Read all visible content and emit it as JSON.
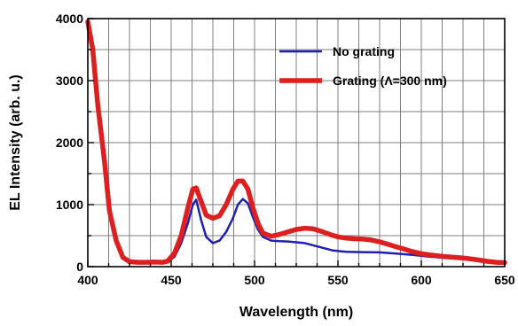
{
  "chart_data": {
    "type": "line",
    "title": "",
    "xlabel": "Wavelength (nm)",
    "ylabel": "EL Intensity (arb. u.)",
    "xlim": [
      400,
      650
    ],
    "ylim": [
      0,
      4000
    ],
    "x_ticks": [
      400,
      450,
      500,
      550,
      600,
      650
    ],
    "y_ticks": [
      0,
      1000,
      2000,
      3000,
      4000
    ],
    "x_tick_labels": [
      "400",
      "450",
      "500",
      "550",
      "600",
      "650"
    ],
    "y_tick_labels": [
      "0",
      "1000",
      "2000",
      "3000",
      "4000"
    ],
    "grid": true,
    "legend_position": "top-right",
    "series": [
      {
        "name": "No grating",
        "color": "#1f1fb4",
        "points": [
          [
            400,
            3950
          ],
          [
            403,
            3500
          ],
          [
            406,
            2600
          ],
          [
            410,
            1700
          ],
          [
            413,
            900
          ],
          [
            417,
            420
          ],
          [
            421,
            150
          ],
          [
            425,
            80
          ],
          [
            430,
            65
          ],
          [
            435,
            65
          ],
          [
            440,
            70
          ],
          [
            445,
            60
          ],
          [
            448,
            75
          ],
          [
            452,
            160
          ],
          [
            456,
            380
          ],
          [
            460,
            700
          ],
          [
            463,
            1000
          ],
          [
            465,
            1080
          ],
          [
            468,
            750
          ],
          [
            471,
            480
          ],
          [
            475,
            380
          ],
          [
            479,
            420
          ],
          [
            483,
            560
          ],
          [
            487,
            780
          ],
          [
            490,
            1000
          ],
          [
            493,
            1090
          ],
          [
            496,
            1020
          ],
          [
            499,
            800
          ],
          [
            502,
            600
          ],
          [
            505,
            480
          ],
          [
            510,
            420
          ],
          [
            515,
            410
          ],
          [
            520,
            405
          ],
          [
            530,
            380
          ],
          [
            540,
            310
          ],
          [
            547,
            260
          ],
          [
            555,
            240
          ],
          [
            565,
            235
          ],
          [
            575,
            230
          ],
          [
            585,
            210
          ],
          [
            595,
            190
          ],
          [
            605,
            160
          ],
          [
            615,
            140
          ],
          [
            625,
            120
          ],
          [
            635,
            90
          ],
          [
            645,
            70
          ],
          [
            650,
            60
          ]
        ]
      },
      {
        "name": "Grating (Λ=300 nm)",
        "color": "#dd1f1f",
        "points": [
          [
            400,
            3950
          ],
          [
            403,
            3500
          ],
          [
            406,
            2600
          ],
          [
            410,
            1700
          ],
          [
            413,
            900
          ],
          [
            417,
            420
          ],
          [
            421,
            150
          ],
          [
            425,
            80
          ],
          [
            430,
            70
          ],
          [
            435,
            70
          ],
          [
            440,
            75
          ],
          [
            445,
            70
          ],
          [
            448,
            90
          ],
          [
            452,
            220
          ],
          [
            456,
            500
          ],
          [
            460,
            950
          ],
          [
            463,
            1250
          ],
          [
            465,
            1270
          ],
          [
            468,
            1050
          ],
          [
            471,
            830
          ],
          [
            475,
            780
          ],
          [
            479,
            820
          ],
          [
            483,
            1000
          ],
          [
            487,
            1250
          ],
          [
            490,
            1380
          ],
          [
            493,
            1380
          ],
          [
            496,
            1250
          ],
          [
            499,
            950
          ],
          [
            502,
            700
          ],
          [
            505,
            540
          ],
          [
            510,
            490
          ],
          [
            515,
            520
          ],
          [
            520,
            560
          ],
          [
            525,
            600
          ],
          [
            530,
            620
          ],
          [
            535,
            610
          ],
          [
            540,
            570
          ],
          [
            545,
            520
          ],
          [
            550,
            480
          ],
          [
            555,
            460
          ],
          [
            560,
            450
          ],
          [
            565,
            445
          ],
          [
            570,
            430
          ],
          [
            575,
            400
          ],
          [
            580,
            360
          ],
          [
            585,
            320
          ],
          [
            590,
            280
          ],
          [
            595,
            240
          ],
          [
            600,
            210
          ],
          [
            605,
            190
          ],
          [
            610,
            175
          ],
          [
            615,
            160
          ],
          [
            620,
            150
          ],
          [
            625,
            140
          ],
          [
            630,
            125
          ],
          [
            635,
            105
          ],
          [
            640,
            85
          ],
          [
            645,
            70
          ],
          [
            650,
            65
          ]
        ]
      }
    ]
  }
}
